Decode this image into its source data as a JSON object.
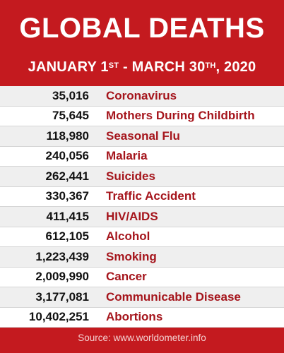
{
  "header": {
    "title": "GLOBAL DEATHS",
    "subtitle_part1": "JANUARY 1",
    "subtitle_sup1": "ST",
    "subtitle_part2": " - MARCH 30",
    "subtitle_sup2": "TH",
    "subtitle_part3": ", 2020"
  },
  "rows": [
    {
      "value": "35,016",
      "cause": "Coronavirus"
    },
    {
      "value": "75,645",
      "cause": "Mothers During Childbirth"
    },
    {
      "value": "118,980",
      "cause": "Seasonal Flu"
    },
    {
      "value": "240,056",
      "cause": "Malaria"
    },
    {
      "value": "262,441",
      "cause": "Suicides"
    },
    {
      "value": "330,367",
      "cause": "Traffic Accident"
    },
    {
      "value": "411,415",
      "cause": "HIV/AIDS"
    },
    {
      "value": "612,105",
      "cause": "Alcohol"
    },
    {
      "value": "1,223,439",
      "cause": "Smoking"
    },
    {
      "value": "2,009,990",
      "cause": "Cancer"
    },
    {
      "value": "3,177,081",
      "cause": "Communicable Disease"
    },
    {
      "value": "10,402,251",
      "cause": "Abortions"
    }
  ],
  "footer": {
    "source": "Source: www.worldometer.info"
  },
  "colors": {
    "background": "#c41a1f",
    "cause_text": "#a5151c",
    "number_text": "#111111"
  }
}
